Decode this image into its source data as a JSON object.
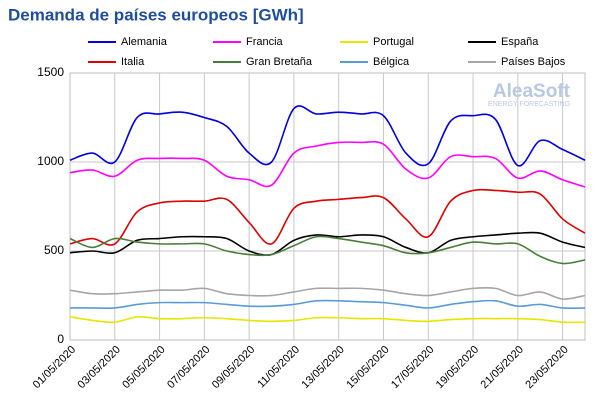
{
  "chart_data": {
    "type": "line",
    "title": "Demanda de países europeos [GWh]",
    "annotations": [
      "AleaSoft",
      "ENERGY FORECASTING"
    ],
    "categories": [
      "01/05/2020",
      null,
      "03/05/2020",
      null,
      "05/05/2020",
      null,
      "07/05/2020",
      null,
      "09/05/2020",
      null,
      "11/05/2020",
      null,
      "13/05/2020",
      null,
      "15/05/2020",
      null,
      "17/05/2020",
      null,
      "19/05/2020",
      null,
      "21/05/2020",
      null,
      "23/05/2020",
      null
    ],
    "ylim": [
      0,
      1500
    ],
    "yticks": [
      0,
      500,
      1000,
      1500
    ],
    "grid": true,
    "legend": "top",
    "series": [
      {
        "name": "Alemania",
        "color": "#0000e0",
        "values": [
          1010,
          1050,
          1000,
          1250,
          1270,
          1280,
          1250,
          1200,
          1050,
          1000,
          1300,
          1270,
          1280,
          1270,
          1260,
          1050,
          990,
          1230,
          1260,
          1240,
          980,
          1120,
          1070,
          1010
        ]
      },
      {
        "name": "Francia",
        "color": "#ff00ff",
        "values": [
          940,
          955,
          920,
          1010,
          1020,
          1020,
          1010,
          920,
          900,
          870,
          1050,
          1090,
          1110,
          1110,
          1100,
          960,
          910,
          1030,
          1030,
          1020,
          910,
          950,
          900,
          860
        ]
      },
      {
        "name": "Portugal",
        "color": "#e6e600",
        "values": [
          130,
          110,
          100,
          130,
          120,
          120,
          125,
          120,
          110,
          105,
          110,
          125,
          125,
          120,
          120,
          110,
          105,
          115,
          120,
          120,
          120,
          115,
          100,
          100
        ]
      },
      {
        "name": "España",
        "color": "#000000",
        "values": [
          490,
          500,
          490,
          560,
          570,
          580,
          580,
          570,
          500,
          480,
          560,
          590,
          580,
          590,
          580,
          520,
          490,
          560,
          580,
          590,
          600,
          600,
          550,
          520
        ]
      },
      {
        "name": "Italia",
        "color": "#e00000",
        "values": [
          540,
          570,
          540,
          720,
          770,
          780,
          780,
          790,
          660,
          540,
          740,
          780,
          790,
          800,
          800,
          680,
          580,
          780,
          840,
          840,
          830,
          820,
          680,
          600
        ]
      },
      {
        "name": "Gran Bretaña",
        "color": "#4a7d3a",
        "values": [
          570,
          520,
          570,
          550,
          540,
          540,
          540,
          500,
          480,
          480,
          530,
          580,
          570,
          550,
          530,
          490,
          490,
          520,
          550,
          540,
          540,
          470,
          430,
          450
        ]
      },
      {
        "name": "Bélgica",
        "color": "#5b9bd5",
        "values": [
          180,
          180,
          180,
          200,
          210,
          210,
          210,
          200,
          190,
          190,
          200,
          220,
          220,
          215,
          210,
          195,
          180,
          200,
          215,
          220,
          190,
          200,
          180,
          180
        ]
      },
      {
        "name": "Países Bajos",
        "color": "#a6a6a6",
        "values": [
          280,
          260,
          260,
          270,
          280,
          280,
          290,
          260,
          250,
          250,
          270,
          290,
          290,
          290,
          280,
          260,
          250,
          270,
          290,
          290,
          250,
          270,
          230,
          250
        ]
      }
    ]
  }
}
